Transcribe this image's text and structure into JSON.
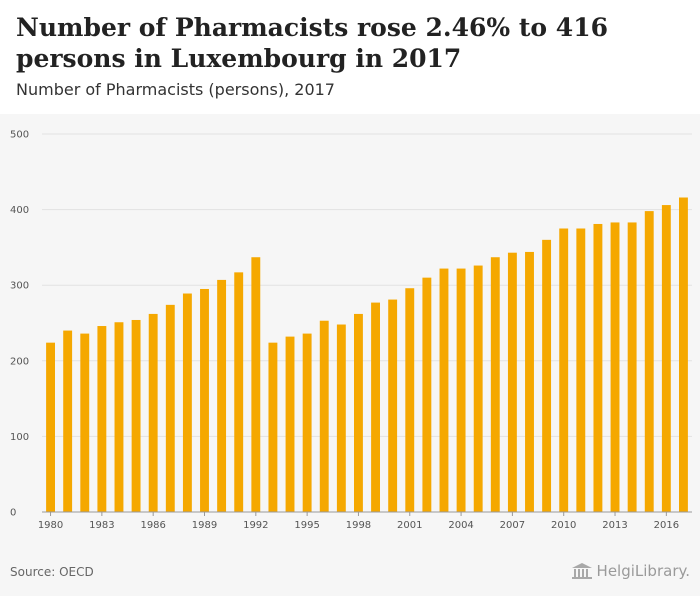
{
  "title": "Number of Pharmacists rose 2.46% to 416 persons in Luxembourg in 2017",
  "subtitle": "Number of Pharmacists (persons), 2017",
  "source": "Source: OECD",
  "logo_text": "HelgiLibrary.",
  "colors": {
    "bar": "#f5a800",
    "grid": "#e2e2e2",
    "background": "#f6f6f6"
  },
  "chart_data": {
    "type": "bar",
    "title": "Number of Pharmacists rose 2.46% to 416 persons in Luxembourg in 2017",
    "subtitle": "Number of Pharmacists (persons), 2017",
    "xlabel": "",
    "ylabel": "",
    "ylim": [
      0,
      500
    ],
    "yticks": [
      0,
      100,
      200,
      300,
      400,
      500
    ],
    "grid": true,
    "categories": [
      "1980",
      "1981",
      "1982",
      "1983",
      "1984",
      "1985",
      "1986",
      "1987",
      "1988",
      "1989",
      "1990",
      "1991",
      "1992",
      "1993",
      "1994",
      "1995",
      "1996",
      "1997",
      "1998",
      "1999",
      "2000",
      "2001",
      "2002",
      "2003",
      "2004",
      "2005",
      "2006",
      "2007",
      "2008",
      "2009",
      "2010",
      "2011",
      "2012",
      "2013",
      "2014",
      "2015",
      "2016",
      "2017"
    ],
    "xtick_labels": [
      "1980",
      "1983",
      "1986",
      "1989",
      "1992",
      "1995",
      "1998",
      "2001",
      "2004",
      "2007",
      "2010",
      "2013",
      "2016"
    ],
    "values": [
      224,
      240,
      236,
      246,
      251,
      254,
      262,
      274,
      289,
      295,
      307,
      317,
      337,
      224,
      232,
      236,
      253,
      248,
      262,
      277,
      281,
      296,
      310,
      322,
      322,
      326,
      337,
      343,
      344,
      360,
      375,
      375,
      381,
      383,
      383,
      398,
      406,
      416
    ]
  }
}
